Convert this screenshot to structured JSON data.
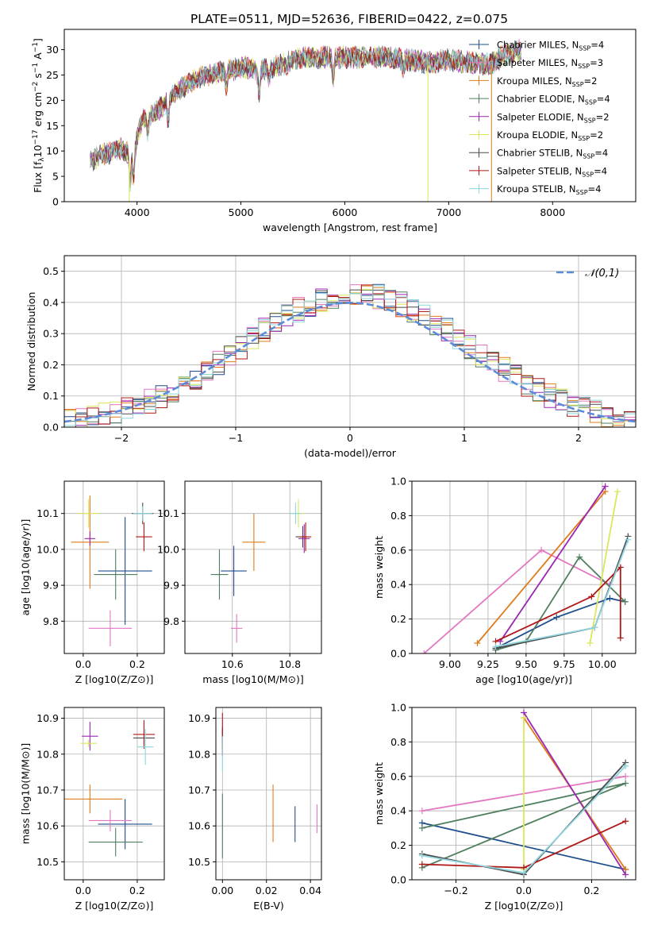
{
  "figure_title": "PLATE=0511, MJD=52636, FIBERID=0422, z=0.075",
  "models": [
    {
      "name": "Chabrier MILES",
      "nssp": "4",
      "color": "#1f4e8c",
      "marker": "x"
    },
    {
      "name": "Salpeter MILES",
      "nssp": "3",
      "color": "#e377c2",
      "marker": "+"
    },
    {
      "name": "Kroupa MILES",
      "nssp": "2",
      "color": "#e07b1a",
      "marker": "+"
    },
    {
      "name": "Chabrier ELODIE",
      "nssp": "4",
      "color": "#4f7f5f",
      "marker": "+"
    },
    {
      "name": "Salpeter ELODIE",
      "nssp": "2",
      "color": "#9b27b0",
      "marker": "+"
    },
    {
      "name": "Kroupa ELODIE",
      "nssp": "2",
      "color": "#dbe65a",
      "marker": "+"
    },
    {
      "name": "Chabrier STELIB",
      "nssp": "4",
      "color": "#4a4a4a",
      "marker": "+"
    },
    {
      "name": "Salpeter STELIB",
      "nssp": "4",
      "color": "#b01818",
      "marker": "+"
    },
    {
      "name": "Kroupa STELIB",
      "nssp": "4",
      "color": "#8fd6df",
      "marker": "+"
    }
  ],
  "chart_data": [
    {
      "id": "spectrum",
      "type": "line",
      "xlabel": "wavelength [Angstrom, rest frame]",
      "ylabel": "Flux [f_λ10^-17 erg cm^-2 s^-1 A^-1]",
      "xlim": [
        3300,
        8800
      ],
      "ylim": [
        0,
        34
      ],
      "xticks": [
        4000,
        5000,
        6000,
        7000,
        8000
      ],
      "yticks": [
        0,
        5,
        10,
        15,
        20,
        25,
        30
      ],
      "grid": false,
      "legend_position": "top-right",
      "continuum": [
        [
          3550,
          8
        ],
        [
          3700,
          9.5
        ],
        [
          3850,
          10.5
        ],
        [
          3950,
          9
        ],
        [
          4050,
          16
        ],
        [
          4200,
          18
        ],
        [
          4400,
          22
        ],
        [
          4600,
          24.5
        ],
        [
          4800,
          25.5
        ],
        [
          5000,
          26.5
        ],
        [
          5200,
          26
        ],
        [
          5400,
          27
        ],
        [
          5600,
          28.5
        ],
        [
          5800,
          28.5
        ],
        [
          6000,
          28.5
        ],
        [
          6200,
          28.5
        ],
        [
          6400,
          28.5
        ],
        [
          6600,
          28
        ],
        [
          6800,
          27.5
        ],
        [
          7000,
          28
        ],
        [
          7200,
          27.5
        ],
        [
          7400,
          27
        ],
        [
          7500,
          28.5
        ],
        [
          7700,
          30
        ]
      ]
    },
    {
      "id": "residual-histogram",
      "type": "bar",
      "xlabel": "(data-model)/error",
      "ylabel": "Normed distribution",
      "xlim": [
        -2.5,
        2.5
      ],
      "ylim": [
        0,
        0.55
      ],
      "xticks": [
        -2,
        -1,
        0,
        1,
        2
      ],
      "yticks": [
        0.0,
        0.1,
        0.2,
        0.3,
        0.4,
        0.5
      ],
      "grid": true,
      "legend": "𝒩(0,1)",
      "legend_position": "top-right",
      "bin_width": 0.1,
      "bin_start": -2.5,
      "reference_curve": "normal(0,1)"
    },
    {
      "id": "age-vs-Z",
      "type": "scatter",
      "xlabel": "Z [log10(Z/Z⊙)]",
      "ylabel": "age  [log10(age/yr)]",
      "xlim": [
        -0.07,
        0.3
      ],
      "ylim": [
        9.71,
        10.19
      ],
      "xticks": [
        0.0,
        0.2
      ],
      "yticks": [
        9.8,
        9.9,
        10.0,
        10.1
      ],
      "grid": true,
      "points": [
        {
          "model": 0,
          "x": 0.155,
          "y": 9.94,
          "xerr": 0.1,
          "yerr": 0.15
        },
        {
          "model": 1,
          "x": 0.1,
          "y": 9.78,
          "xerr": 0.08,
          "yerr": 0.05
        },
        {
          "model": 2,
          "x": 0.025,
          "y": 10.02,
          "xerr": 0.07,
          "yerr": 0.13
        },
        {
          "model": 3,
          "x": 0.12,
          "y": 9.93,
          "xerr": 0.08,
          "yerr": 0.07
        },
        {
          "model": 4,
          "x": 0.025,
          "y": 10.03,
          "xerr": 0.02,
          "yerr": 0.02
        },
        {
          "model": 5,
          "x": 0.02,
          "y": 10.1,
          "xerr": 0.04,
          "yerr": 0.04
        },
        {
          "model": 6,
          "x": 0.22,
          "y": 10.1,
          "xerr": 0.04,
          "yerr": 0.03
        },
        {
          "model": 7,
          "x": 0.225,
          "y": 10.035,
          "xerr": 0.03,
          "yerr": 0.04
        },
        {
          "model": 8,
          "x": 0.22,
          "y": 10.1,
          "xerr": 0.035,
          "yerr": 0.02
        }
      ]
    },
    {
      "id": "age-vs-mass",
      "type": "scatter",
      "xlabel": "mass [log10(M/M⊙)]",
      "ylabel": "",
      "xlim": [
        10.435,
        10.91
      ],
      "ylim": [
        9.71,
        10.19
      ],
      "xticks": [
        10.6,
        10.8
      ],
      "yticks": [
        9.8,
        9.9,
        10.0,
        10.1
      ],
      "grid": true,
      "points": [
        {
          "model": 0,
          "x": 10.605,
          "y": 9.94,
          "xerr": 0.045,
          "yerr": 0.07
        },
        {
          "model": 1,
          "x": 10.615,
          "y": 9.78,
          "xerr": 0.02,
          "yerr": 0.04
        },
        {
          "model": 2,
          "x": 10.675,
          "y": 10.02,
          "xerr": 0.04,
          "yerr": 0.08
        },
        {
          "model": 3,
          "x": 10.555,
          "y": 9.93,
          "xerr": 0.03,
          "yerr": 0.07
        },
        {
          "model": 4,
          "x": 10.85,
          "y": 10.03,
          "xerr": 0.02,
          "yerr": 0.04
        },
        {
          "model": 5,
          "x": 10.83,
          "y": 10.1,
          "xerr": 0.02,
          "yerr": 0.04
        },
        {
          "model": 6,
          "x": 10.845,
          "y": 10.035,
          "xerr": 0.025,
          "yerr": 0.03
        },
        {
          "model": 7,
          "x": 10.855,
          "y": 10.035,
          "xerr": 0.02,
          "yerr": 0.04
        },
        {
          "model": 8,
          "x": 10.82,
          "y": 10.1,
          "xerr": 0.02,
          "yerr": 0.03
        }
      ]
    },
    {
      "id": "mass-weight-vs-age",
      "type": "line",
      "xlabel": "age  [log10(age/yr)]",
      "ylabel": "mass weight",
      "xlim": [
        8.75,
        10.22
      ],
      "ylim": [
        0,
        1
      ],
      "xticks": [
        9.0,
        9.25,
        9.5,
        9.75,
        10.0
      ],
      "yticks": [
        0.0,
        0.2,
        0.4,
        0.6,
        0.8,
        1.0
      ],
      "grid": true,
      "series": [
        {
          "model": 0,
          "points": [
            [
              9.3,
              0.03
            ],
            [
              9.7,
              0.21
            ],
            [
              10.05,
              0.32
            ],
            [
              10.15,
              0.3
            ]
          ]
        },
        {
          "model": 1,
          "points": [
            [
              8.83,
              0.0
            ],
            [
              9.6,
              0.6
            ],
            [
              10.05,
              0.4
            ]
          ]
        },
        {
          "model": 2,
          "points": [
            [
              9.18,
              0.06
            ],
            [
              10.02,
              0.94
            ]
          ]
        },
        {
          "model": 3,
          "points": [
            [
              9.3,
              0.02
            ],
            [
              9.5,
              0.07
            ],
            [
              9.85,
              0.56
            ],
            [
              10.15,
              0.3
            ]
          ]
        },
        {
          "model": 4,
          "points": [
            [
              9.33,
              0.07
            ],
            [
              10.02,
              0.97
            ]
          ]
        },
        {
          "model": 5,
          "points": [
            [
              9.92,
              0.06
            ],
            [
              10.1,
              0.94
            ]
          ]
        },
        {
          "model": 6,
          "points": [
            [
              9.3,
              0.03
            ],
            [
              9.95,
              0.15
            ],
            [
              10.17,
              0.68
            ]
          ]
        },
        {
          "model": 7,
          "points": [
            [
              9.3,
              0.07
            ],
            [
              9.93,
              0.33
            ],
            [
              10.12,
              0.5
            ],
            [
              10.12,
              0.09
            ]
          ]
        },
        {
          "model": 8,
          "points": [
            [
              9.3,
              0.04
            ],
            [
              9.95,
              0.15
            ],
            [
              10.17,
              0.66
            ]
          ]
        }
      ]
    },
    {
      "id": "mass-vs-Z",
      "type": "scatter",
      "xlabel": "Z [log10(Z/Z⊙)]",
      "ylabel": "mass [log10(M/M⊙)]",
      "xlim": [
        -0.07,
        0.3
      ],
      "ylim": [
        10.45,
        10.93
      ],
      "xticks": [
        0.0,
        0.2
      ],
      "yticks": [
        10.5,
        10.6,
        10.7,
        10.8,
        10.9
      ],
      "grid": true,
      "points": [
        {
          "model": 0,
          "x": 0.155,
          "y": 10.605,
          "xerr": 0.1,
          "yerr": 0.07
        },
        {
          "model": 1,
          "x": 0.1,
          "y": 10.615,
          "xerr": 0.08,
          "yerr": 0.03
        },
        {
          "model": 2,
          "x": 0.025,
          "y": 10.675,
          "xerr": 0.12,
          "yerr": 0.04
        },
        {
          "model": 3,
          "x": 0.12,
          "y": 10.555,
          "xerr": 0.1,
          "yerr": 0.04
        },
        {
          "model": 4,
          "x": 0.025,
          "y": 10.85,
          "xerr": 0.03,
          "yerr": 0.04
        },
        {
          "model": 5,
          "x": 0.02,
          "y": 10.83,
          "xerr": 0.03,
          "yerr": 0.01
        },
        {
          "model": 6,
          "x": 0.225,
          "y": 10.845,
          "xerr": 0.04,
          "yerr": 0.02
        },
        {
          "model": 7,
          "x": 0.225,
          "y": 10.855,
          "xerr": 0.04,
          "yerr": 0.04
        },
        {
          "model": 8,
          "x": 0.23,
          "y": 10.82,
          "xerr": 0.03,
          "yerr": 0.05
        }
      ]
    },
    {
      "id": "mass-vs-EBV",
      "type": "scatter",
      "xlabel": "E(B-V)",
      "ylabel": "",
      "xlim": [
        -0.003,
        0.045
      ],
      "ylim": [
        10.45,
        10.93
      ],
      "xticks": [
        0.0,
        0.02,
        0.04
      ],
      "yticks": [
        10.5,
        10.6,
        10.7,
        10.8,
        10.9
      ],
      "grid": true,
      "points": [
        {
          "model": 0,
          "x": 0.033,
          "y": 10.605,
          "xerr": 0,
          "yerr": 0.05
        },
        {
          "model": 1,
          "x": 0.043,
          "y": 10.62,
          "xerr": 0,
          "yerr": 0.04
        },
        {
          "model": 2,
          "x": 0.023,
          "y": 10.635,
          "xerr": 0,
          "yerr": 0.08
        },
        {
          "model": 3,
          "x": 0.0,
          "y": 10.6,
          "xerr": 0,
          "yerr": 0.09
        },
        {
          "model": 4,
          "x": 0.0,
          "y": 10.85,
          "xerr": 0,
          "yerr": 0.02
        },
        {
          "model": 5,
          "x": 0.0,
          "y": 10.83,
          "xerr": 0,
          "yerr": 0.02
        },
        {
          "model": 6,
          "x": 0.0,
          "y": 10.845,
          "xerr": 0,
          "yerr": 0.03
        },
        {
          "model": 7,
          "x": 0.0,
          "y": 10.855,
          "xerr": 0,
          "yerr": 0.06
        },
        {
          "model": 8,
          "x": 0.0,
          "y": 10.8,
          "xerr": 0,
          "yerr": 0.05
        }
      ]
    },
    {
      "id": "mass-weight-vs-Z",
      "type": "line",
      "xlabel": "Z [log10(Z/Z⊙)]",
      "ylabel": "mass weight",
      "xlim": [
        -0.33,
        0.33
      ],
      "ylim": [
        0,
        1
      ],
      "xticks": [
        -0.2,
        0.0,
        0.2
      ],
      "yticks": [
        0.0,
        0.2,
        0.4,
        0.6,
        0.8,
        1.0
      ],
      "grid": true,
      "series": [
        {
          "model": 0,
          "points": [
            [
              -0.3,
              0.33
            ],
            [
              0.3,
              0.06
            ]
          ]
        },
        {
          "model": 1,
          "points": [
            [
              -0.3,
              0.4
            ],
            [
              0.3,
              0.6
            ]
          ]
        },
        {
          "model": 2,
          "points": [
            [
              0.0,
              0.94
            ],
            [
              0.3,
              0.06
            ]
          ]
        },
        {
          "model": 3,
          "points": [
            [
              -0.3,
              0.3
            ],
            [
              0.3,
              0.56
            ],
            [
              -0.3,
              0.07
            ]
          ]
        },
        {
          "model": 4,
          "points": [
            [
              0.0,
              0.97
            ],
            [
              0.3,
              0.03
            ]
          ]
        },
        {
          "model": 5,
          "points": [
            [
              0.0,
              0.94
            ],
            [
              0.0,
              0.06
            ]
          ]
        },
        {
          "model": 6,
          "points": [
            [
              -0.3,
              0.15
            ],
            [
              0.0,
              0.03
            ],
            [
              0.3,
              0.68
            ]
          ]
        },
        {
          "model": 7,
          "points": [
            [
              -0.3,
              0.09
            ],
            [
              0.0,
              0.07
            ],
            [
              0.3,
              0.34
            ]
          ]
        },
        {
          "model": 8,
          "points": [
            [
              -0.3,
              0.14
            ],
            [
              0.0,
              0.04
            ],
            [
              0.3,
              0.66
            ]
          ]
        }
      ]
    }
  ]
}
